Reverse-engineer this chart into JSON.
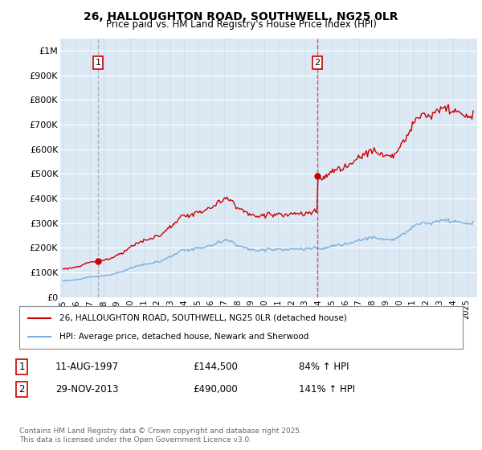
{
  "title_line1": "26, HALLOUGHTON ROAD, SOUTHWELL, NG25 0LR",
  "title_line2": "Price paid vs. HM Land Registry's House Price Index (HPI)",
  "legend_label1": "26, HALLOUGHTON ROAD, SOUTHWELL, NG25 0LR (detached house)",
  "legend_label2": "HPI: Average price, detached house, Newark and Sherwood",
  "annotation1_label": "1",
  "annotation1_date": "11-AUG-1997",
  "annotation1_price": "£144,500",
  "annotation1_hpi": "84% ↑ HPI",
  "annotation2_label": "2",
  "annotation2_date": "29-NOV-2013",
  "annotation2_price": "£490,000",
  "annotation2_hpi": "141% ↑ HPI",
  "footnote": "Contains HM Land Registry data © Crown copyright and database right 2025.\nThis data is licensed under the Open Government Licence v3.0.",
  "sale1_year": 1997.614,
  "sale1_price": 144500,
  "sale2_year": 2013.913,
  "sale2_price": 490000,
  "hpi_line_color": "#7aaddc",
  "price_line_color": "#cc0000",
  "background_color": "#ffffff",
  "plot_bg_color": "#dce9f5",
  "vline1_color": "#aaaaaa",
  "vline2_color": "#dd4444",
  "ylim_max": 1050000,
  "ylim_min": 0,
  "xlim_min": 1994.8,
  "xlim_max": 2025.8
}
